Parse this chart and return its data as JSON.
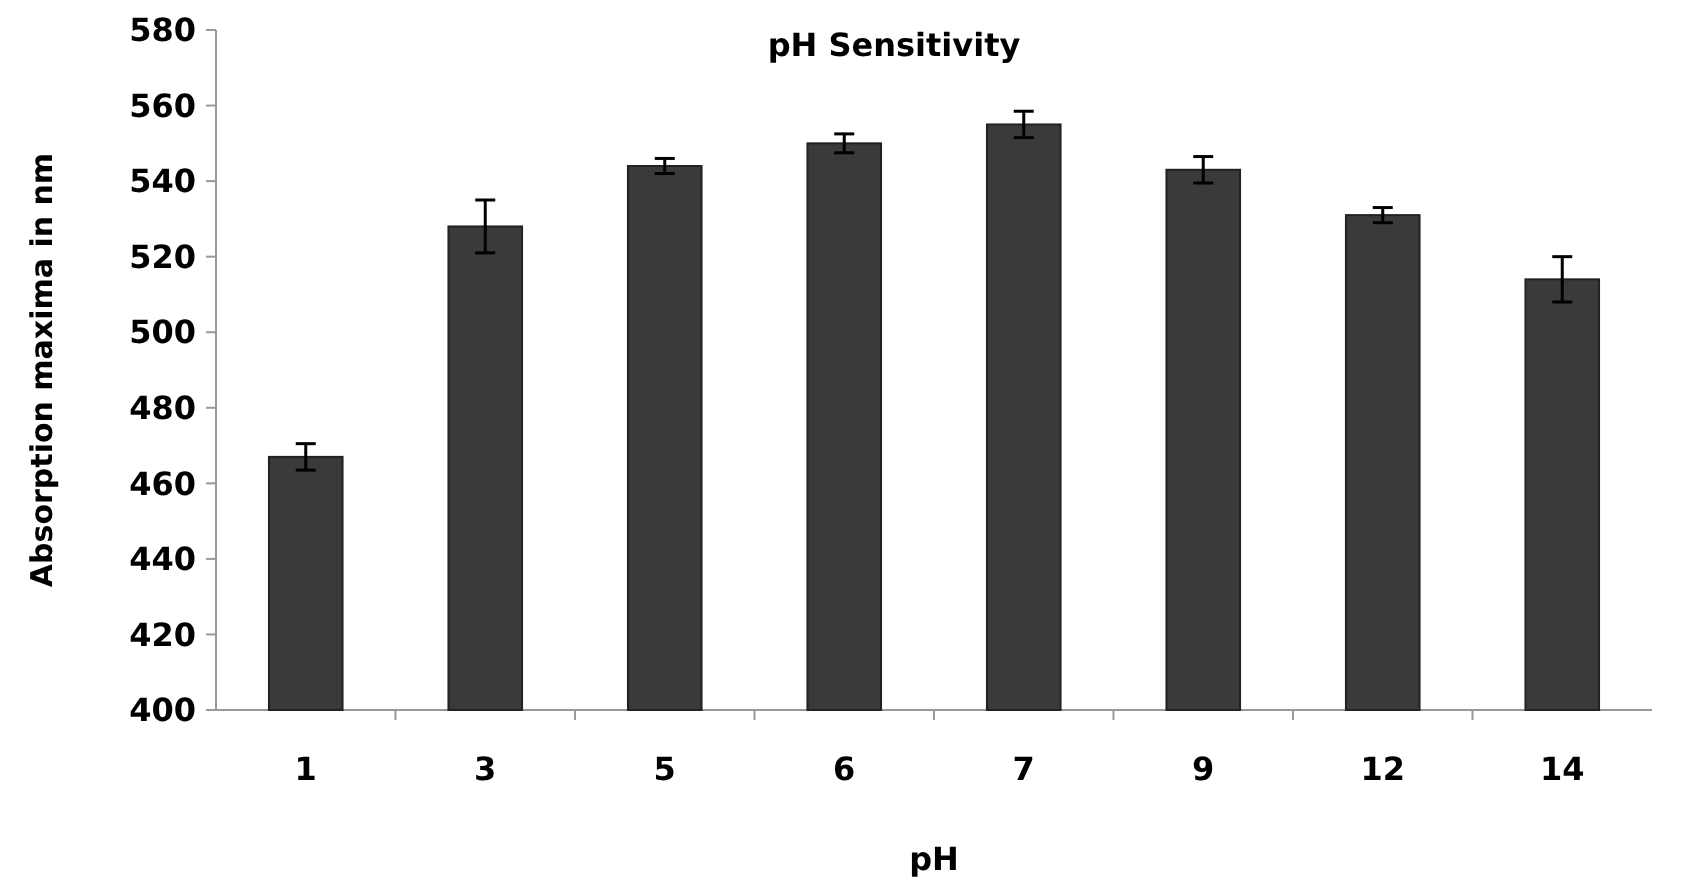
{
  "chart_data": {
    "type": "bar",
    "title": "pH Sensitivity",
    "xlabel": "pH",
    "ylabel": "Absorption maxima in nm",
    "categories": [
      "1",
      "3",
      "5",
      "6",
      "7",
      "9",
      "12",
      "14"
    ],
    "values": [
      467,
      528,
      544,
      550,
      555,
      543,
      531,
      514
    ],
    "errors": [
      3.5,
      7,
      2,
      2.5,
      3.5,
      3.5,
      2,
      6
    ],
    "color": "#3a3a3a",
    "ylim": [
      400,
      580
    ],
    "yticks": [
      400,
      420,
      440,
      460,
      480,
      500,
      520,
      540,
      560,
      580
    ],
    "grid": false
  }
}
